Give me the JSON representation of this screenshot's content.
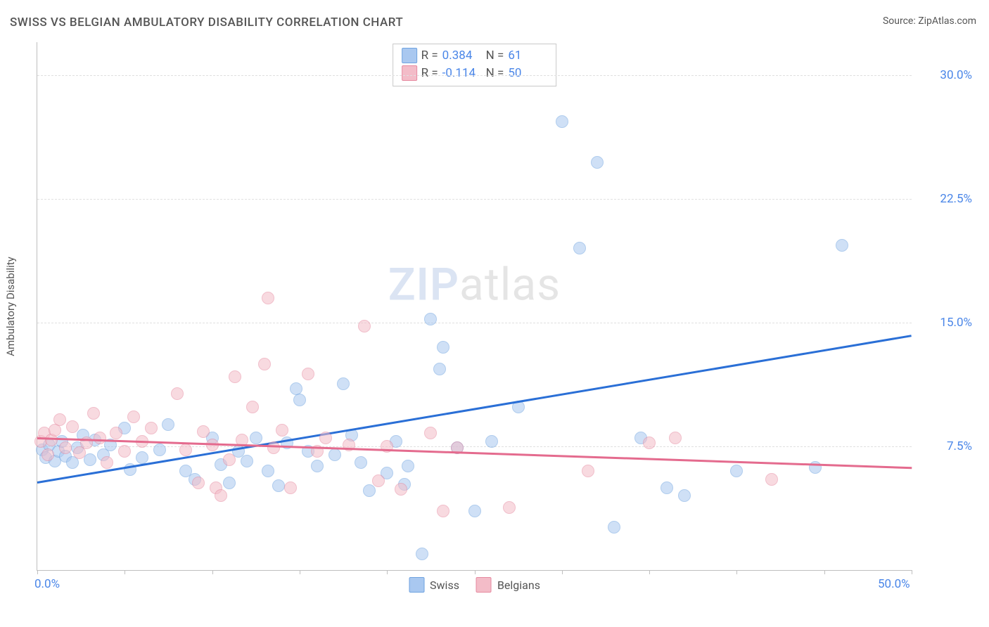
{
  "title": "SWISS VS BELGIAN AMBULATORY DISABILITY CORRELATION CHART",
  "source": "Source: ZipAtlas.com",
  "y_axis_title": "Ambulatory Disability",
  "watermark_bold": "ZIP",
  "watermark_light": "atlas",
  "chart": {
    "type": "scatter",
    "background_color": "#ffffff",
    "grid_color": "#e0e0e0",
    "axis_color": "#bfbfbf",
    "tick_label_color": "#4a86e8",
    "axis_title_color": "#555555",
    "title_color": "#555555",
    "title_fontsize": 17,
    "tick_fontsize": 17,
    "axis_title_fontsize": 15,
    "xlim": [
      0,
      50
    ],
    "ylim": [
      0,
      32
    ],
    "y_grid_values": [
      7.5,
      15.0,
      22.5,
      30.0
    ],
    "y_tick_labels": [
      "7.5%",
      "15.0%",
      "22.5%",
      "30.0%"
    ],
    "x_tick_values": [
      0,
      5,
      10,
      15,
      20,
      25,
      30,
      35,
      40,
      45,
      50
    ],
    "x_tick_labels_shown": {
      "0": "0.0%",
      "50": "50.0%"
    },
    "point_radius": 9,
    "point_border_width": 1,
    "point_opacity": 0.55,
    "series": [
      {
        "name": "Swiss",
        "fill_color": "#a9c8f0",
        "border_color": "#6fa3e0",
        "trend_color": "#2a6fd6",
        "trend_width": 3,
        "R": "0.384",
        "N": "61",
        "trend": {
          "x1": 0,
          "y1": 5.3,
          "x2": 50,
          "y2": 14.2
        },
        "points": [
          [
            0.3,
            7.3
          ],
          [
            0.5,
            6.8
          ],
          [
            0.7,
            7.6
          ],
          [
            1.0,
            6.6
          ],
          [
            1.2,
            7.2
          ],
          [
            1.4,
            7.8
          ],
          [
            1.6,
            6.9
          ],
          [
            2.0,
            6.5
          ],
          [
            2.3,
            7.4
          ],
          [
            2.6,
            8.2
          ],
          [
            3.0,
            6.7
          ],
          [
            3.3,
            7.9
          ],
          [
            3.8,
            7.0
          ],
          [
            4.2,
            7.6
          ],
          [
            5.0,
            8.6
          ],
          [
            5.3,
            6.1
          ],
          [
            6.0,
            6.8
          ],
          [
            7.0,
            7.3
          ],
          [
            7.5,
            8.8
          ],
          [
            8.5,
            6.0
          ],
          [
            9.0,
            5.5
          ],
          [
            10.0,
            8.0
          ],
          [
            10.5,
            6.4
          ],
          [
            11.0,
            5.3
          ],
          [
            11.5,
            7.2
          ],
          [
            12.0,
            6.6
          ],
          [
            12.5,
            8.0
          ],
          [
            13.2,
            6.0
          ],
          [
            13.8,
            5.1
          ],
          [
            14.3,
            7.7
          ],
          [
            14.8,
            11.0
          ],
          [
            15.0,
            10.3
          ],
          [
            15.5,
            7.2
          ],
          [
            16.0,
            6.3
          ],
          [
            17.0,
            7.0
          ],
          [
            17.5,
            11.3
          ],
          [
            18.0,
            8.2
          ],
          [
            18.5,
            6.5
          ],
          [
            19.0,
            4.8
          ],
          [
            20.0,
            5.9
          ],
          [
            20.5,
            7.8
          ],
          [
            21.0,
            5.2
          ],
          [
            21.2,
            6.3
          ],
          [
            22.0,
            1.0
          ],
          [
            22.5,
            15.2
          ],
          [
            23.0,
            12.2
          ],
          [
            23.2,
            13.5
          ],
          [
            24.0,
            7.4
          ],
          [
            25.0,
            3.6
          ],
          [
            26.0,
            7.8
          ],
          [
            27.5,
            9.9
          ],
          [
            30.0,
            27.2
          ],
          [
            31.0,
            19.5
          ],
          [
            32.0,
            24.7
          ],
          [
            33.0,
            2.6
          ],
          [
            34.5,
            8.0
          ],
          [
            36.0,
            5.0
          ],
          [
            37.0,
            4.5
          ],
          [
            40.0,
            6.0
          ],
          [
            46.0,
            19.7
          ],
          [
            44.5,
            6.2
          ]
        ]
      },
      {
        "name": "Belgians",
        "fill_color": "#f3bcc8",
        "border_color": "#e68aa0",
        "trend_color": "#e46b8e",
        "trend_width": 3,
        "R": "-0.114",
        "N": "50",
        "trend": {
          "x1": 0,
          "y1": 8.0,
          "x2": 50,
          "y2": 6.2
        },
        "points": [
          [
            0.2,
            7.8
          ],
          [
            0.4,
            8.3
          ],
          [
            0.6,
            7.0
          ],
          [
            0.8,
            7.9
          ],
          [
            1.0,
            8.5
          ],
          [
            1.3,
            9.1
          ],
          [
            1.6,
            7.4
          ],
          [
            2.0,
            8.7
          ],
          [
            2.4,
            7.1
          ],
          [
            2.8,
            7.7
          ],
          [
            3.2,
            9.5
          ],
          [
            3.6,
            8.0
          ],
          [
            4.0,
            6.5
          ],
          [
            4.5,
            8.3
          ],
          [
            5.0,
            7.2
          ],
          [
            5.5,
            9.3
          ],
          [
            6.0,
            7.8
          ],
          [
            6.5,
            8.6
          ],
          [
            8.0,
            10.7
          ],
          [
            8.5,
            7.3
          ],
          [
            9.2,
            5.3
          ],
          [
            9.5,
            8.4
          ],
          [
            10.0,
            7.6
          ],
          [
            10.2,
            5.0
          ],
          [
            10.5,
            4.5
          ],
          [
            11.0,
            6.7
          ],
          [
            11.3,
            11.7
          ],
          [
            11.7,
            7.9
          ],
          [
            12.3,
            9.9
          ],
          [
            13.0,
            12.5
          ],
          [
            13.2,
            16.5
          ],
          [
            13.5,
            7.4
          ],
          [
            14.0,
            8.5
          ],
          [
            14.5,
            5.0
          ],
          [
            15.5,
            11.9
          ],
          [
            16.0,
            7.2
          ],
          [
            16.5,
            8.0
          ],
          [
            17.8,
            7.6
          ],
          [
            18.7,
            14.8
          ],
          [
            19.5,
            5.4
          ],
          [
            20.0,
            7.5
          ],
          [
            20.8,
            4.9
          ],
          [
            22.5,
            8.3
          ],
          [
            23.2,
            3.6
          ],
          [
            24.0,
            7.4
          ],
          [
            27.0,
            3.8
          ],
          [
            31.5,
            6.0
          ],
          [
            35.0,
            7.7
          ],
          [
            36.5,
            8.0
          ],
          [
            42.0,
            5.5
          ]
        ]
      }
    ]
  },
  "legend": {
    "swiss_label": "Swiss",
    "belgians_label": "Belgians"
  },
  "stats_box": {
    "r_prefix": "R =",
    "n_prefix": "N ="
  }
}
